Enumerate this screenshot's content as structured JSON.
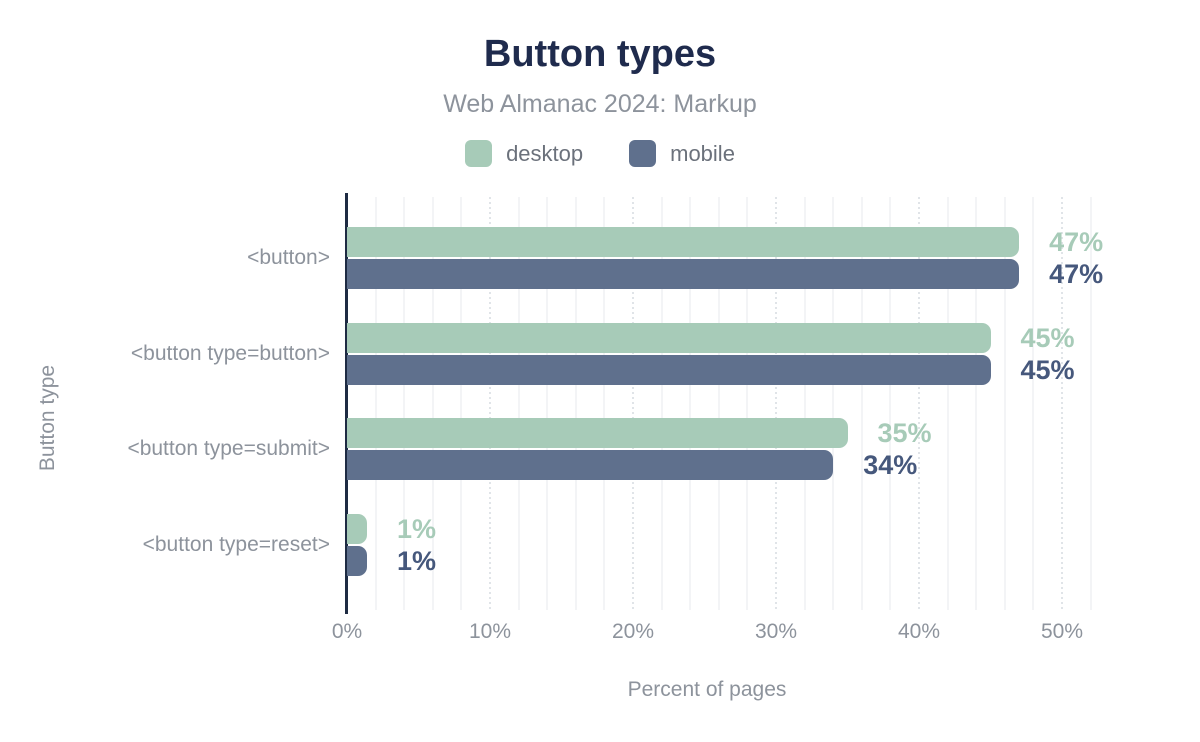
{
  "chart_data": {
    "type": "bar",
    "orientation": "horizontal",
    "title": "Button types",
    "subtitle": "Web Almanac 2024: Markup",
    "xlabel": "Percent of pages",
    "ylabel": "Button type",
    "categories": [
      "<button>",
      "<button type=button>",
      "<button type=submit>",
      "<button type=reset>"
    ],
    "series": [
      {
        "name": "desktop",
        "values": [
          47,
          45,
          35,
          1
        ],
        "color": "#a7cbb8",
        "label_color": "#a7cbb8"
      },
      {
        "name": "mobile",
        "values": [
          47,
          45,
          34,
          1
        ],
        "color": "#5f708d",
        "label_color": "#46587c"
      }
    ],
    "value_suffix": "%",
    "x_tick_values": [
      0,
      10,
      20,
      30,
      40,
      50
    ],
    "x_tick_labels": [
      "0%",
      "10%",
      "20%",
      "30%",
      "40%",
      "50%"
    ],
    "xlim": [
      0,
      52.6
    ],
    "grid": {
      "minor_step": 2,
      "major_step": 10,
      "major_style": "dotted",
      "minor_style": "solid"
    },
    "legend_position": "top"
  },
  "colors": {
    "background": "#ffffff",
    "title": "#1f2b4d",
    "axis_line": "#1e2b43",
    "muted_text": "#8d939c",
    "legend_text": "#6b717b",
    "grid_minor": "#f3f4f6",
    "grid_major": "#e0e4e8"
  }
}
